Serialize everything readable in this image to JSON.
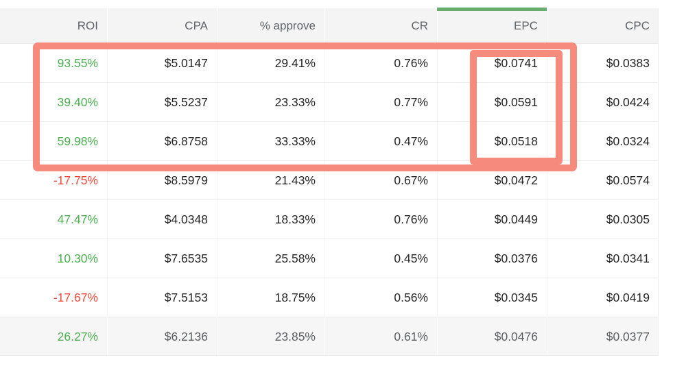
{
  "header": {
    "columns": [
      {
        "key": "roi",
        "label": "ROI",
        "sorted": false
      },
      {
        "key": "cpa",
        "label": "CPA",
        "sorted": false
      },
      {
        "key": "approve",
        "label": "% approve",
        "sorted": false
      },
      {
        "key": "cr",
        "label": "CR",
        "sorted": false
      },
      {
        "key": "epc",
        "label": "EPC",
        "sorted": true
      },
      {
        "key": "cpc",
        "label": "CPC",
        "sorted": false
      }
    ],
    "sorted_column": "EPC"
  },
  "rows": [
    {
      "roi": "93.55%",
      "trend": "positive",
      "cpa": "$5.0147",
      "approve": "29.41%",
      "cr": "0.76%",
      "epc": "$0.0741",
      "cpc": "$0.0383",
      "summary": false
    },
    {
      "roi": "39.40%",
      "trend": "positive",
      "cpa": "$5.5237",
      "approve": "23.33%",
      "cr": "0.77%",
      "epc": "$0.0591",
      "cpc": "$0.0424",
      "summary": false
    },
    {
      "roi": "59.98%",
      "trend": "positive",
      "cpa": "$6.8758",
      "approve": "33.33%",
      "cr": "0.47%",
      "epc": "$0.0518",
      "cpc": "$0.0324",
      "summary": false
    },
    {
      "roi": "-17.75%",
      "trend": "negative",
      "cpa": "$8.5979",
      "approve": "21.43%",
      "cr": "0.67%",
      "epc": "$0.0472",
      "cpc": "$0.0574",
      "summary": false
    },
    {
      "roi": "47.47%",
      "trend": "positive",
      "cpa": "$4.0348",
      "approve": "18.33%",
      "cr": "0.76%",
      "epc": "$0.0449",
      "cpc": "$0.0305",
      "summary": false
    },
    {
      "roi": "10.30%",
      "trend": "positive",
      "cpa": "$7.6535",
      "approve": "25.58%",
      "cr": "0.45%",
      "epc": "$0.0376",
      "cpc": "$0.0341",
      "summary": false
    },
    {
      "roi": "-17.67%",
      "trend": "negative",
      "cpa": "$7.5153",
      "approve": "18.75%",
      "cr": "0.56%",
      "epc": "$0.0345",
      "cpc": "$0.0419",
      "summary": false
    },
    {
      "roi": "26.27%",
      "trend": "positive",
      "cpa": "$6.2136",
      "approve": "23.85%",
      "cr": "0.61%",
      "epc": "$0.0476",
      "cpc": "$0.0377",
      "summary": true
    }
  ],
  "annotations": {
    "rows_highlight_note": "red box around first three data rows",
    "epc_highlight_note": "red box around EPC values of first three rows"
  },
  "colors": {
    "positive": "#4caf50",
    "negative": "#f0483c",
    "highlight": "#f68a7c",
    "sort_indicator": "#68ad6e",
    "header_bg": "#f4f4f5",
    "summary_bg": "#f6f6f7",
    "divider": "#e9eaeb",
    "body_text": "#262626",
    "header_text": "#5f6368",
    "summary_text": "#5c5f62"
  }
}
